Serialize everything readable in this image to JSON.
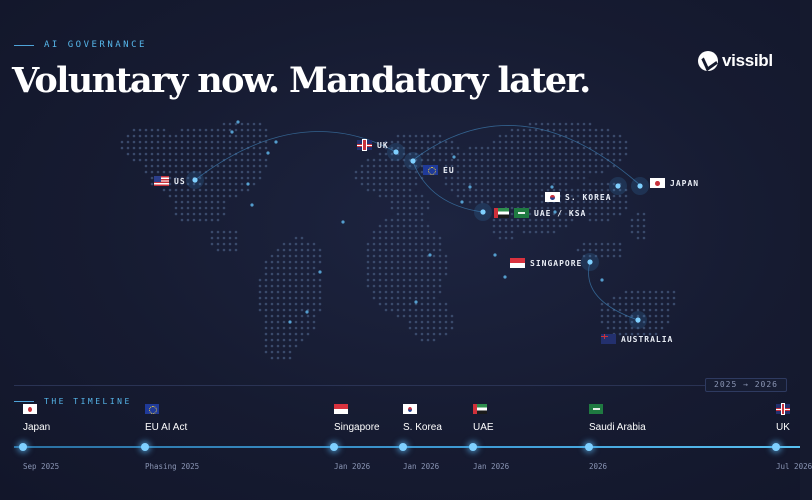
{
  "header": {
    "eyebrow": "AI GOVERNANCE",
    "headline": "Voluntary now. Mandatory later.",
    "logo": "vissibl"
  },
  "map": {
    "markers": [
      {
        "label": "US",
        "flag": "us"
      },
      {
        "label": "UK",
        "flag": "uk"
      },
      {
        "label": "EU",
        "flag": "eu"
      },
      {
        "label": "UAE / KSA",
        "flag": "uae"
      },
      {
        "label": "S. KOREA",
        "flag": "kr"
      },
      {
        "label": "JAPAN",
        "flag": "jp"
      },
      {
        "label": "SINGAPORE",
        "flag": "sg"
      },
      {
        "label": "AUSTRALIA",
        "flag": "au"
      }
    ]
  },
  "timeline": {
    "heading": "THE TIMELINE",
    "range": "2025 → 2026",
    "items": [
      {
        "name": "Japan",
        "date": "Sep 2025",
        "flag": "jp"
      },
      {
        "name": "EU AI Act",
        "date": "Phasing 2025",
        "flag": "eu"
      },
      {
        "name": "Singapore",
        "date": "Jan 2026",
        "flag": "sg"
      },
      {
        "name": "S. Korea",
        "date": "Jan 2026",
        "flag": "kr"
      },
      {
        "name": "UAE",
        "date": "Jan 2026",
        "flag": "uae"
      },
      {
        "name": "Saudi Arabia",
        "date": "2026",
        "flag": "ksa"
      },
      {
        "name": "UK",
        "date": "Jul 2026",
        "flag": "uk"
      }
    ]
  },
  "colors": {
    "background": "#151a2e",
    "accent": "#56b6ea",
    "dot": "#7fd0ff",
    "map_dot": "#3a4a6b"
  }
}
